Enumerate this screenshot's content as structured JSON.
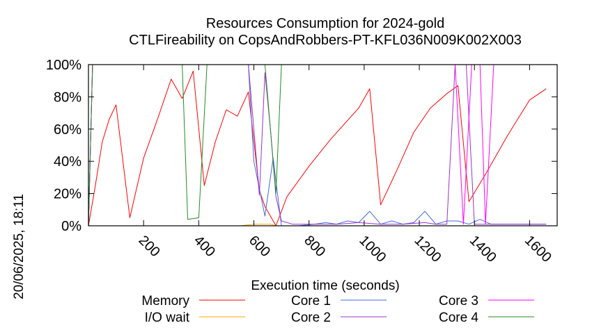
{
  "chart_data": {
    "type": "line",
    "title": "Resources Consumption for 2024-gold",
    "subtitle": "CTLFireability on CopsAndRobbers-PT-KFL036N009K002X003",
    "xlabel": "Execution time (seconds)",
    "ylabel": "",
    "timestamp": "20/06/2025, 18:11",
    "xlim": [
      0,
      1700
    ],
    "ylim": [
      0,
      100
    ],
    "xticks": [
      200,
      400,
      600,
      800,
      1000,
      1200,
      1400,
      1600
    ],
    "xtick_labels": [
      "200",
      "400",
      "600",
      "800",
      "1000",
      "1200",
      "1400",
      "1600"
    ],
    "yticks": [
      0,
      20,
      40,
      60,
      80,
      100
    ],
    "ytick_labels": [
      "0%",
      "20%",
      "40%",
      "60%",
      "80%",
      "100%"
    ],
    "grid": false,
    "legend_position": "bottom",
    "series": [
      {
        "name": "Memory",
        "color": "#ff0000",
        "points": [
          [
            0,
            0
          ],
          [
            25,
            25
          ],
          [
            50,
            52
          ],
          [
            75,
            66
          ],
          [
            100,
            75
          ],
          [
            125,
            40
          ],
          [
            150,
            5
          ],
          [
            200,
            42
          ],
          [
            250,
            66
          ],
          [
            300,
            91
          ],
          [
            340,
            79
          ],
          [
            380,
            96
          ],
          [
            420,
            25
          ],
          [
            460,
            52
          ],
          [
            500,
            72
          ],
          [
            540,
            68
          ],
          [
            580,
            83
          ],
          [
            620,
            22
          ],
          [
            640,
            12
          ],
          [
            680,
            0
          ],
          [
            720,
            18
          ],
          [
            800,
            37
          ],
          [
            880,
            54
          ],
          [
            980,
            73
          ],
          [
            1020,
            85
          ],
          [
            1060,
            13
          ],
          [
            1120,
            35
          ],
          [
            1180,
            58
          ],
          [
            1240,
            73
          ],
          [
            1300,
            82
          ],
          [
            1340,
            87
          ],
          [
            1380,
            15
          ],
          [
            1440,
            32
          ],
          [
            1520,
            56
          ],
          [
            1600,
            78
          ],
          [
            1660,
            85
          ]
        ]
      },
      {
        "name": "I/O wait",
        "color": "#ffa500",
        "points": [
          [
            0,
            0
          ],
          [
            550,
            0
          ],
          [
            600,
            1
          ],
          [
            660,
            1
          ],
          [
            680,
            0
          ],
          [
            1660,
            0
          ]
        ]
      },
      {
        "name": "Core 1",
        "color": "#4169e1",
        "points": [
          [
            0,
            0
          ],
          [
            15,
            100
          ],
          [
            580,
            100
          ],
          [
            600,
            40
          ],
          [
            640,
            6
          ],
          [
            670,
            42
          ],
          [
            700,
            0
          ],
          [
            760,
            0
          ],
          [
            820,
            1
          ],
          [
            860,
            2
          ],
          [
            900,
            1
          ],
          [
            940,
            3
          ],
          [
            980,
            2
          ],
          [
            1020,
            9
          ],
          [
            1060,
            1
          ],
          [
            1100,
            3
          ],
          [
            1140,
            1
          ],
          [
            1180,
            2
          ],
          [
            1220,
            9
          ],
          [
            1260,
            1
          ],
          [
            1300,
            3
          ],
          [
            1340,
            3
          ],
          [
            1380,
            1
          ],
          [
            1420,
            4
          ],
          [
            1460,
            1
          ],
          [
            1500,
            1
          ],
          [
            1660,
            1
          ]
        ]
      },
      {
        "name": "Core 2",
        "color": "#9932cc",
        "points": [
          [
            0,
            0
          ],
          [
            15,
            100
          ],
          [
            580,
            100
          ],
          [
            600,
            60
          ],
          [
            620,
            19
          ],
          [
            640,
            95
          ],
          [
            660,
            60
          ],
          [
            680,
            18
          ],
          [
            700,
            3
          ],
          [
            740,
            1
          ],
          [
            820,
            1
          ],
          [
            900,
            1
          ],
          [
            980,
            2
          ],
          [
            1060,
            1
          ],
          [
            1140,
            1
          ],
          [
            1220,
            2
          ],
          [
            1260,
            1
          ],
          [
            1300,
            1
          ],
          [
            1330,
            100
          ],
          [
            1370,
            100
          ],
          [
            1400,
            1
          ],
          [
            1660,
            1
          ]
        ]
      },
      {
        "name": "Core 3",
        "color": "#ff00ff",
        "points": [
          [
            0,
            0
          ],
          [
            15,
            100
          ],
          [
            1330,
            100
          ],
          [
            1360,
            1
          ],
          [
            1390,
            100
          ],
          [
            1420,
            100
          ],
          [
            1440,
            1
          ],
          [
            1470,
            100
          ],
          [
            1660,
            100
          ]
        ]
      },
      {
        "name": "Core 4",
        "color": "#228b22",
        "points": [
          [
            0,
            0
          ],
          [
            15,
            100
          ],
          [
            340,
            100
          ],
          [
            360,
            4
          ],
          [
            400,
            5
          ],
          [
            430,
            100
          ],
          [
            580,
            100
          ],
          [
            600,
            100
          ],
          [
            640,
            100
          ],
          [
            680,
            20
          ],
          [
            700,
            100
          ],
          [
            1660,
            100
          ]
        ]
      }
    ]
  }
}
